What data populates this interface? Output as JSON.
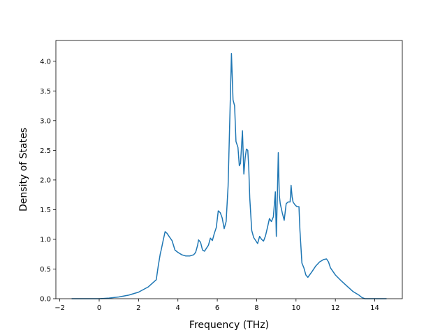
{
  "chart_data": {
    "type": "line",
    "title": "",
    "xlabel": "Frequency (THz)",
    "ylabel": "Density of States",
    "xlim": [
      -2.2,
      15.4
    ],
    "ylim": [
      0.0,
      4.35
    ],
    "xticks": [
      -2,
      0,
      2,
      4,
      6,
      8,
      10,
      12,
      14
    ],
    "yticks": [
      0.0,
      0.5,
      1.0,
      1.5,
      2.0,
      2.5,
      3.0,
      3.5,
      4.0
    ],
    "xtick_labels": [
      "−2",
      "0",
      "2",
      "4",
      "6",
      "8",
      "10",
      "12",
      "14"
    ],
    "ytick_labels": [
      "0.0",
      "0.5",
      "1.0",
      "1.5",
      "2.0",
      "2.5",
      "3.0",
      "3.5",
      "4.0"
    ],
    "grid": false,
    "series": [
      {
        "color": "#1f77b4",
        "x": [
          -1.4,
          -0.5,
          0.0,
          0.5,
          1.0,
          1.5,
          2.0,
          2.5,
          2.9,
          3.0,
          3.1,
          3.15,
          3.25,
          3.35,
          3.45,
          3.55,
          3.7,
          3.85,
          4.0,
          4.2,
          4.4,
          4.6,
          4.8,
          4.9,
          5.0,
          5.05,
          5.15,
          5.25,
          5.35,
          5.45,
          5.55,
          5.65,
          5.75,
          5.85,
          5.95,
          6.05,
          6.15,
          6.25,
          6.35,
          6.45,
          6.55,
          6.65,
          6.72,
          6.8,
          6.88,
          6.95,
          7.05,
          7.12,
          7.18,
          7.22,
          7.28,
          7.35,
          7.42,
          7.48,
          7.55,
          7.6,
          7.65,
          7.75,
          7.85,
          7.95,
          8.05,
          8.15,
          8.25,
          8.35,
          8.45,
          8.55,
          8.65,
          8.75,
          8.85,
          8.95,
          9.0,
          9.05,
          9.1,
          9.15,
          9.2,
          9.3,
          9.4,
          9.5,
          9.6,
          9.7,
          9.75,
          9.8,
          9.85,
          9.95,
          10.05,
          10.15,
          10.2,
          10.3,
          10.4,
          10.5,
          10.6,
          10.8,
          11.0,
          11.2,
          11.4,
          11.55,
          11.65,
          11.75,
          12.0,
          12.3,
          12.6,
          12.9,
          13.2,
          13.35,
          13.5,
          14.0,
          14.6
        ],
        "y": [
          0.0,
          0.0,
          0.0,
          0.01,
          0.03,
          0.06,
          0.11,
          0.2,
          0.32,
          0.55,
          0.75,
          0.82,
          0.98,
          1.13,
          1.1,
          1.05,
          0.98,
          0.82,
          0.78,
          0.74,
          0.72,
          0.72,
          0.74,
          0.78,
          0.9,
          0.99,
          0.95,
          0.82,
          0.8,
          0.85,
          0.9,
          1.02,
          0.98,
          1.1,
          1.2,
          1.48,
          1.45,
          1.36,
          1.18,
          1.3,
          1.9,
          3.2,
          4.13,
          3.35,
          3.25,
          2.65,
          2.55,
          2.24,
          2.28,
          2.5,
          2.83,
          2.1,
          2.38,
          2.52,
          2.5,
          2.2,
          1.7,
          1.15,
          1.03,
          0.98,
          0.93,
          1.05,
          1.0,
          0.97,
          1.06,
          1.2,
          1.35,
          1.3,
          1.38,
          1.8,
          1.05,
          1.7,
          2.46,
          1.75,
          1.6,
          1.45,
          1.32,
          1.6,
          1.63,
          1.63,
          1.91,
          1.72,
          1.63,
          1.58,
          1.55,
          1.55,
          1.15,
          0.6,
          0.52,
          0.4,
          0.36,
          0.45,
          0.55,
          0.62,
          0.66,
          0.67,
          0.62,
          0.52,
          0.4,
          0.3,
          0.21,
          0.12,
          0.06,
          0.02,
          0.0,
          0.0,
          0.0
        ]
      }
    ]
  }
}
